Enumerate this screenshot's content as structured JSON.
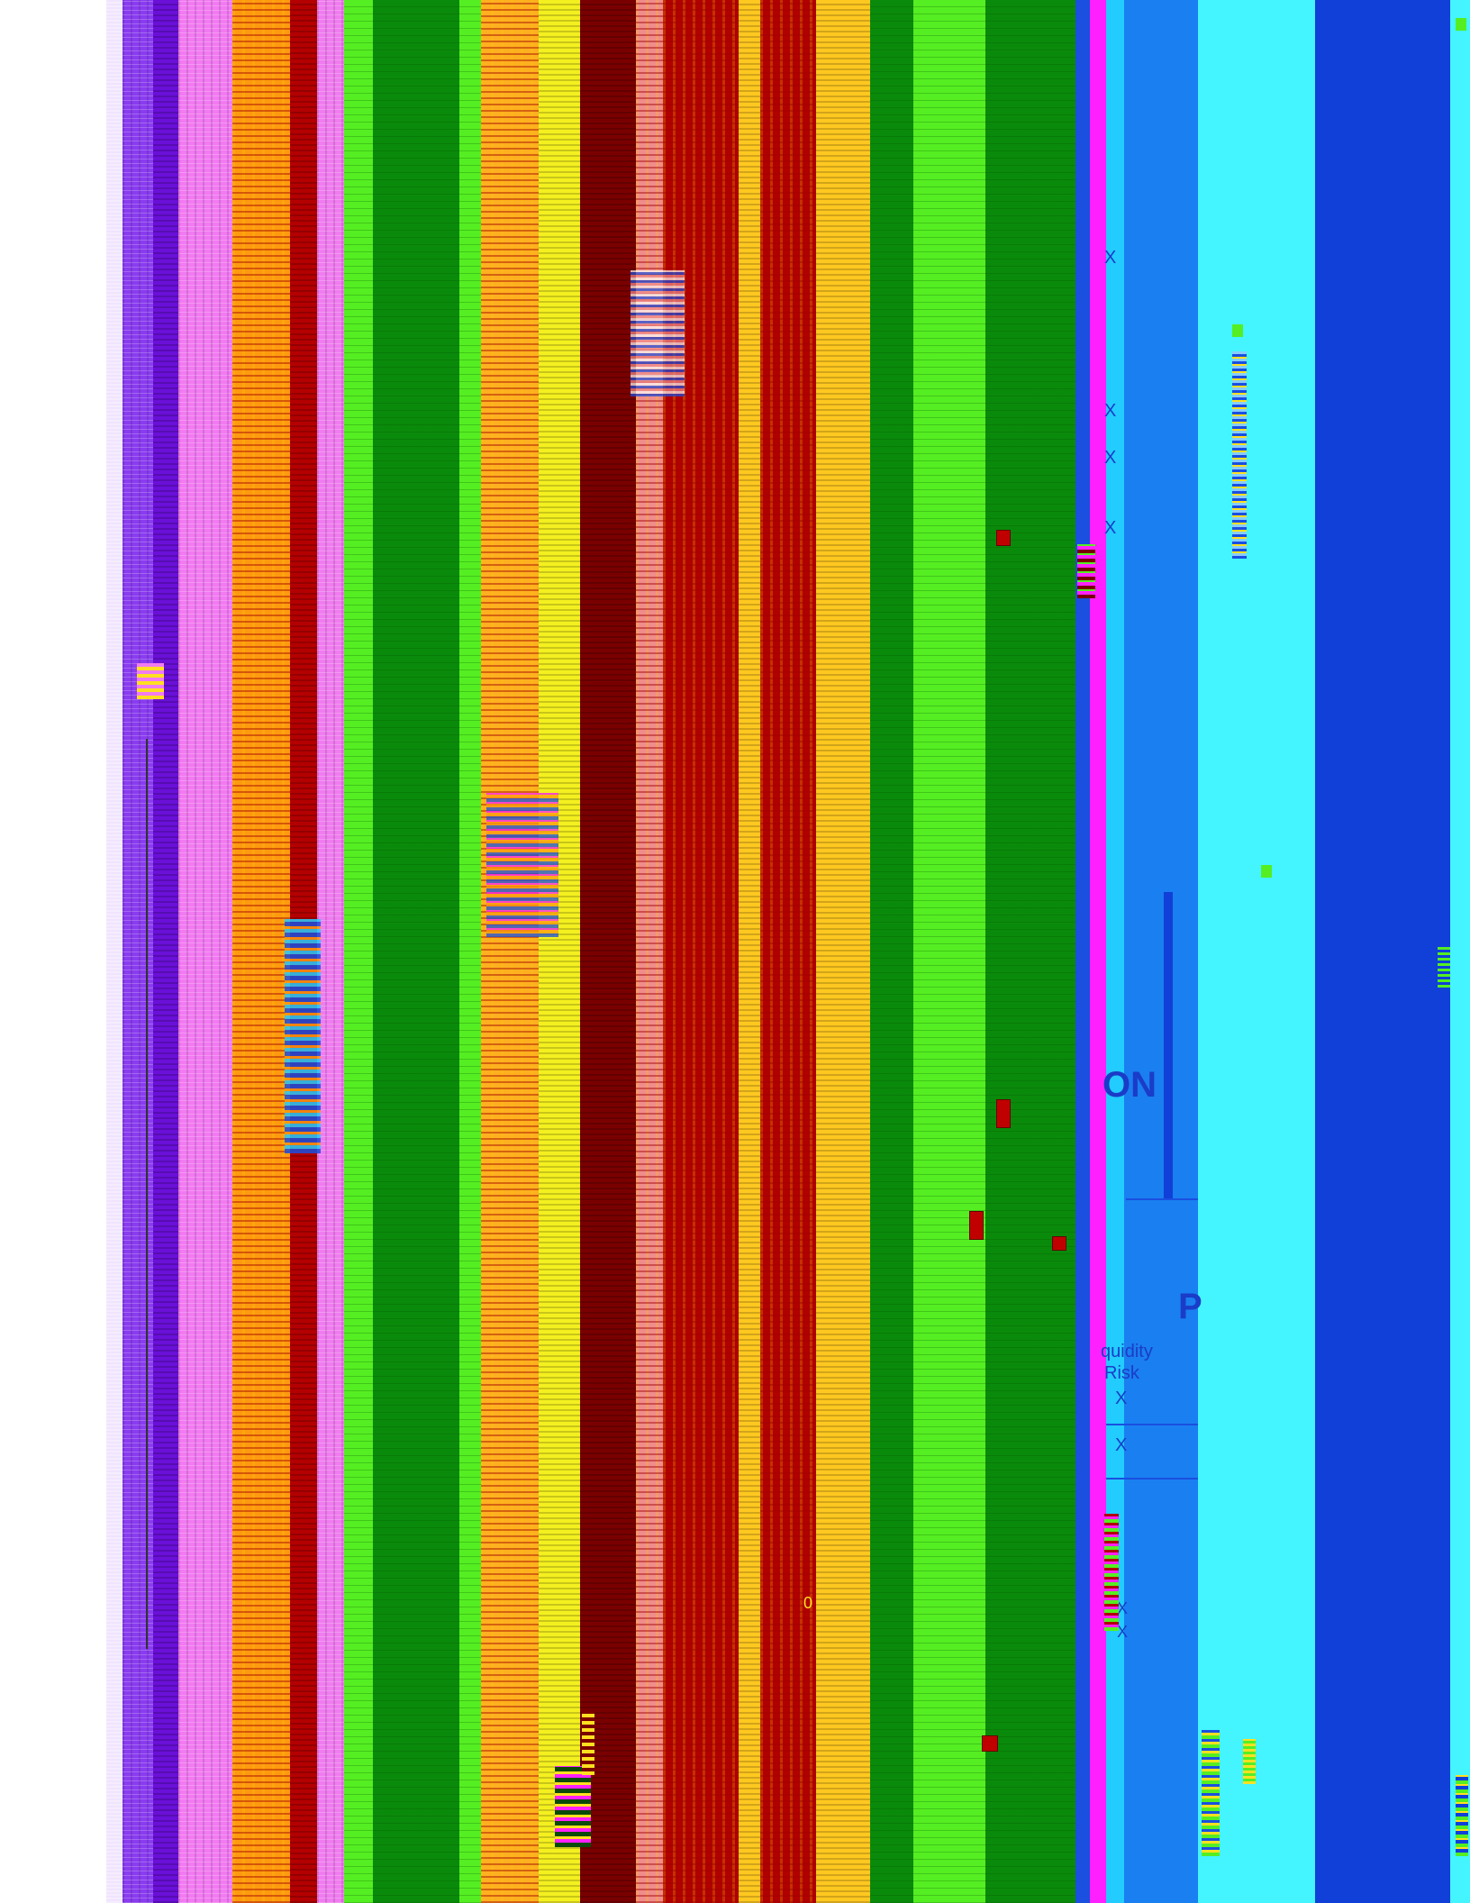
{
  "fragments": {
    "x_mark": "X",
    "on": "ON",
    "p": "P",
    "liquidity": "quidity",
    "risk": "Risk",
    "zero": "0"
  },
  "palette": {
    "white": "#ffffff",
    "violet": "#7a1fe0",
    "pink": "#f07cf0",
    "orange": "#ffa000",
    "dark_red": "#b00000",
    "lime": "#55ee22",
    "green": "#0a8a0a",
    "yellow": "#ffe020",
    "maroon": "#7a0000",
    "gold": "#ffc820",
    "blue": "#1a4fe0",
    "magenta": "#ff20ff",
    "sky": "#22aaff",
    "cyan": "#44f4ff",
    "royal": "#1040d8"
  }
}
